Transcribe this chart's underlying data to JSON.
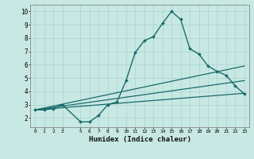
{
  "xlabel": "Humidex (Indice chaleur)",
  "xlim": [
    -0.5,
    23.5
  ],
  "ylim": [
    1.3,
    10.5
  ],
  "yticks": [
    2,
    3,
    4,
    5,
    6,
    7,
    8,
    9,
    10
  ],
  "xticks": [
    0,
    1,
    2,
    3,
    5,
    6,
    7,
    8,
    9,
    10,
    11,
    12,
    13,
    14,
    15,
    16,
    17,
    18,
    19,
    20,
    21,
    22,
    23
  ],
  "bg_color": "#c8e8e4",
  "line_color": "#1a6b6b",
  "grid_color": "#aad4d0",
  "lines": [
    {
      "x": [
        0,
        1,
        2,
        3,
        5,
        6,
        7,
        8,
        9,
        10,
        11,
        12,
        13,
        14,
        15,
        16,
        17,
        18,
        19,
        20,
        21,
        22,
        23
      ],
      "y": [
        2.6,
        2.6,
        2.7,
        3.0,
        1.7,
        1.7,
        2.2,
        3.0,
        3.2,
        4.8,
        6.9,
        7.8,
        8.1,
        9.1,
        10.0,
        9.4,
        7.2,
        6.8,
        5.9,
        5.5,
        5.2,
        4.4,
        3.8
      ],
      "marker": "D",
      "markersize": 2.0,
      "linewidth": 1.0
    },
    {
      "x": [
        0,
        23
      ],
      "y": [
        2.6,
        5.9
      ],
      "marker": null,
      "markersize": 0,
      "linewidth": 0.9
    },
    {
      "x": [
        0,
        23
      ],
      "y": [
        2.6,
        4.8
      ],
      "marker": null,
      "markersize": 0,
      "linewidth": 0.9
    },
    {
      "x": [
        0,
        23
      ],
      "y": [
        2.6,
        3.85
      ],
      "marker": null,
      "markersize": 0,
      "linewidth": 0.9
    }
  ]
}
